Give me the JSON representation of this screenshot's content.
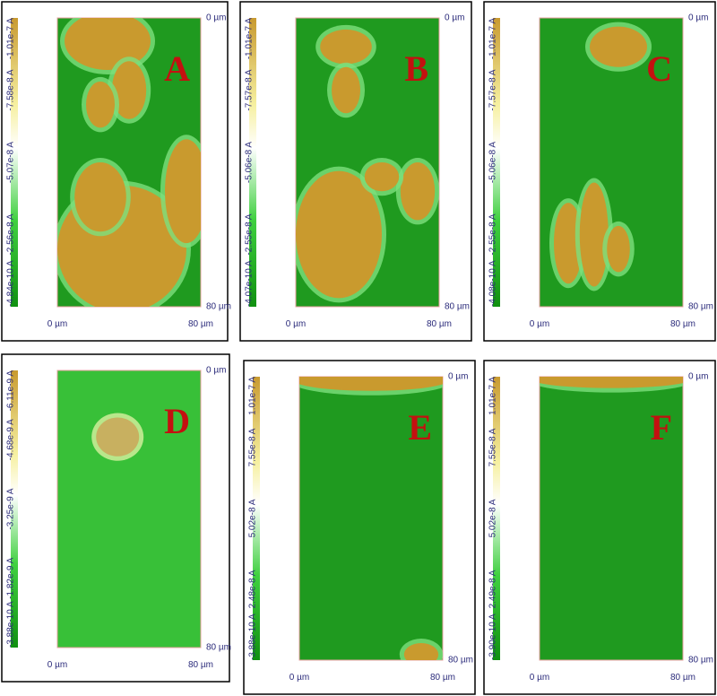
{
  "panels": [
    {
      "label": "A",
      "colorbar_ticks": [
        "-1.01e-7 A",
        "-7.58e-8 A",
        "-5.07e-8 A",
        "-2.56e-8 A",
        "-4.84e-10 A"
      ],
      "y_axis": [
        "0 µm",
        "80 µm"
      ],
      "x_axis": [
        "0 µm",
        "80 µm"
      ]
    },
    {
      "label": "B",
      "colorbar_ticks": [
        "-1.01e-7 A",
        "-7.57e-8 A",
        "-5.06e-8 A",
        "-2.55e-8 A",
        "-4.07e-10 A"
      ],
      "y_axis": [
        "0 µm",
        "80 µm"
      ],
      "x_axis": [
        "0 µm",
        "80 µm"
      ]
    },
    {
      "label": "C",
      "colorbar_ticks": [
        "-1.01e-7 A",
        "-7.57e-8 A",
        "-5.06e-8 A",
        "-2.55e-8 A",
        "-4.08e-10 A"
      ],
      "y_axis": [
        "0 µm",
        "80 µm"
      ],
      "x_axis": [
        "0 µm",
        "80 µm"
      ]
    },
    {
      "label": "D",
      "colorbar_ticks": [
        "-6.11e-9 A",
        "-4.68e-9 A",
        "-3.25e-9 A",
        "-1.82e-9 A",
        "-3.88e-10 A"
      ],
      "y_axis": [
        "0 µm",
        "80 µm"
      ],
      "x_axis": [
        "0 µm",
        "80 µm"
      ]
    },
    {
      "label": "E",
      "colorbar_ticks": [
        "1.01e-7 A",
        "7.55e-8 A",
        "5.02e-8 A",
        "2.48e-8 A",
        "-3.88e-10 A"
      ],
      "y_axis": [
        "0 µm",
        "80 µm"
      ],
      "x_axis": [
        "0 µm",
        "80 µm"
      ]
    },
    {
      "label": "F",
      "colorbar_ticks": [
        "1.01e-7 A",
        "7.55e-8 A",
        "5.02e-8 A",
        "2.49e-8 A",
        "-3.90e-10 A"
      ],
      "y_axis": [
        "0 µm",
        "80 µm"
      ],
      "x_axis": [
        "0 µm",
        "80 µm"
      ]
    }
  ]
}
